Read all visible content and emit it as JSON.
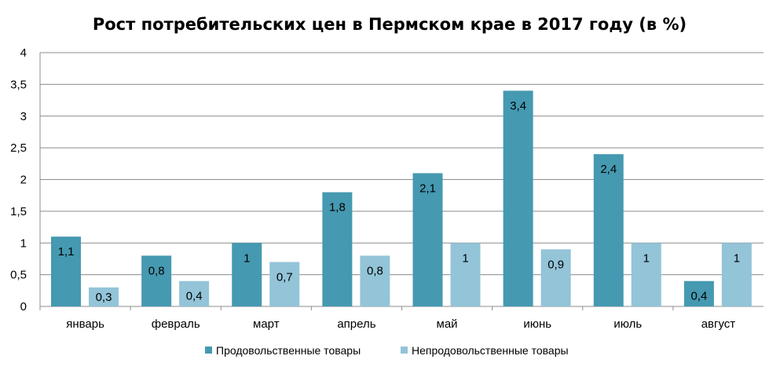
{
  "chart_data": {
    "type": "bar",
    "title": "Рост потребительских цен в Пермском крае в 2017 году (в %)",
    "xlabel": "",
    "ylabel": "",
    "ylim": [
      0,
      4
    ],
    "ytick_step": 0.5,
    "ytick_labels": [
      "0",
      "0,5",
      "1",
      "1,5",
      "2",
      "2,5",
      "3",
      "3,5",
      "4"
    ],
    "grid": true,
    "legend_position": "bottom",
    "categories": [
      "январь",
      "февраль",
      "март",
      "апрель",
      "май",
      "июнь",
      "июль",
      "август"
    ],
    "series": [
      {
        "name": "Продовольственные товары",
        "color": "#4599b1",
        "values": [
          1.1,
          0.8,
          1,
          1.8,
          2.1,
          3.4,
          2.4,
          0.4
        ],
        "labels": [
          "1,1",
          "0,8",
          "1",
          "1,8",
          "2,1",
          "3,4",
          "2,4",
          "0,4"
        ]
      },
      {
        "name": "Непродовольственные товары",
        "color": "#93c4d8",
        "values": [
          0.3,
          0.4,
          0.7,
          0.8,
          1,
          0.9,
          1,
          1
        ],
        "labels": [
          "0,3",
          "0,4",
          "0,7",
          "0,8",
          "1",
          "0,9",
          "1",
          "1"
        ]
      }
    ]
  }
}
